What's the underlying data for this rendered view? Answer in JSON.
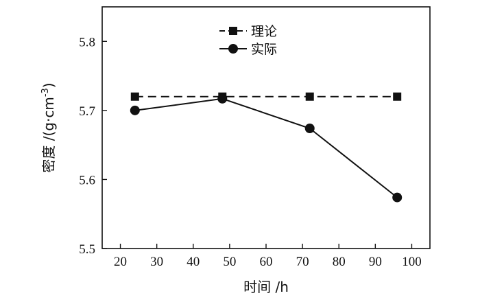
{
  "chart_data": {
    "type": "line",
    "xlabel": "时间 /h",
    "ylabel": "密度 /(g·cm",
    "ylabel_sup": "-3",
    "ylabel_close": ")",
    "xlim": [
      15,
      105
    ],
    "ylim": [
      5.5,
      5.85
    ],
    "xticks": [
      20,
      30,
      40,
      50,
      60,
      70,
      80,
      90,
      100
    ],
    "yticks": [
      5.5,
      5.6,
      5.7,
      5.8
    ],
    "ytick_labels": [
      "5.5",
      "5.6",
      "5.7",
      "5.8"
    ],
    "grid": false,
    "legend_position": "top-center",
    "series": [
      {
        "name": "理论",
        "marker": "square",
        "line_style": "dashed",
        "color": "#111111",
        "x": [
          24,
          48,
          72,
          96
        ],
        "y": [
          5.72,
          5.72,
          5.72,
          5.72
        ]
      },
      {
        "name": "实际",
        "marker": "circle",
        "line_style": "solid",
        "color": "#111111",
        "x": [
          24,
          48,
          72,
          96
        ],
        "y": [
          5.7,
          5.717,
          5.674,
          5.574
        ]
      }
    ]
  }
}
